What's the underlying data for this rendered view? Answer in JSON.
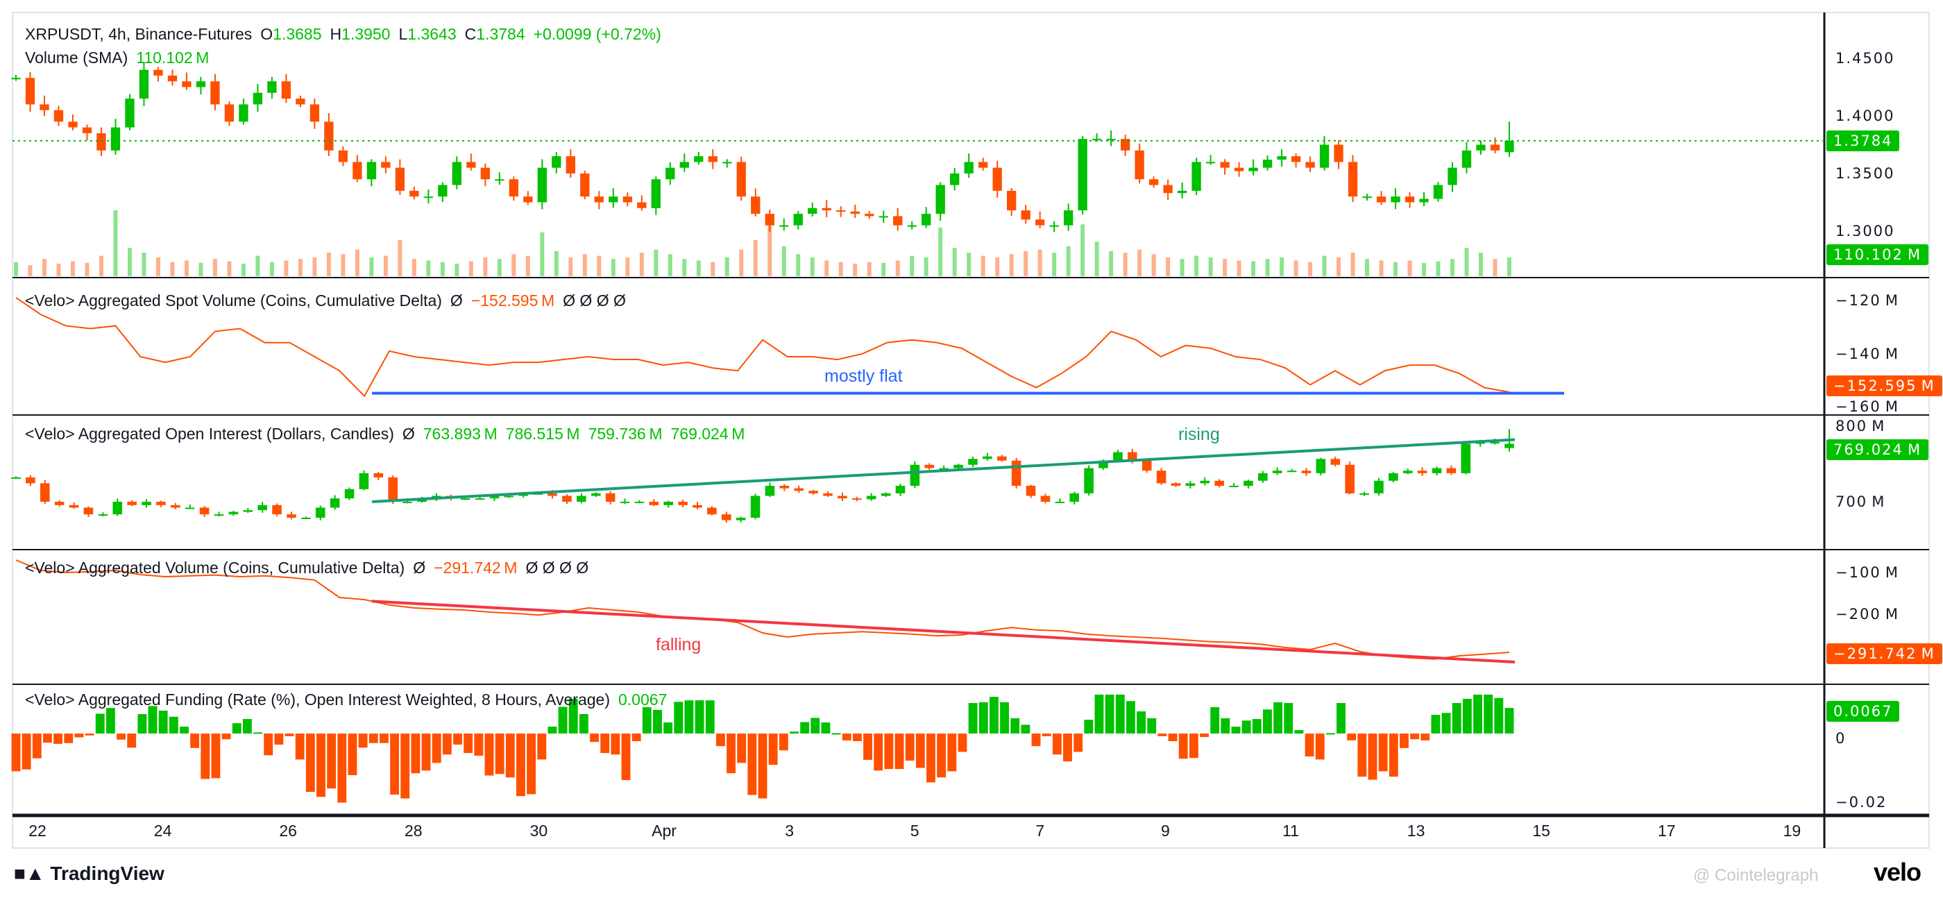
{
  "header": {
    "symbol": "XRPUSDT, 4h, Binance-Futures",
    "o_label": "O",
    "o": "1.3685",
    "h_label": "H",
    "h": "1.3950",
    "l_label": "L",
    "l": "1.3643",
    "c_label": "C",
    "c": "1.3784",
    "change": "+0.0099 (+0.72%)",
    "volume_label": "Volume (SMA)",
    "volume_value": "110.102 M"
  },
  "panes": {
    "spot": {
      "title": "<Velo> Aggregated Spot Volume (Coins, Cumulative Delta)",
      "pre": "Ø",
      "value": "−152.595 M",
      "post": "Ø  Ø  Ø  Ø"
    },
    "oi": {
      "title": "<Velo> Aggregated Open Interest (Dollars, Candles)",
      "pre": "Ø",
      "o": "763.893 M",
      "h": "786.515 M",
      "l": "759.736 M",
      "c": "769.024 M"
    },
    "vol": {
      "title": "<Velo> Aggregated Volume (Coins, Cumulative Delta)",
      "pre": "Ø",
      "value": "−291.742 M",
      "post": "Ø  Ø  Ø  Ø"
    },
    "funding": {
      "title": "<Velo> Aggregated Funding (Rate (%), Open Interest Weighted, 8 Hours, Average)",
      "value": "0.0067"
    }
  },
  "axes": {
    "price_ticks": [
      "1.4500",
      "1.4000",
      "1.3500",
      "1.3000"
    ],
    "price_tag": "1.3784",
    "volume_tag": "110.102 M",
    "spot_ticks": [
      "−120 M",
      "−140 M",
      "−160 M"
    ],
    "spot_tag": "−152.595 M",
    "oi_ticks": [
      "800 M",
      "700 M"
    ],
    "oi_tag": "769.024 M",
    "vol_ticks": [
      "−100 M",
      "−200 M"
    ],
    "vol_tag": "−291.742 M",
    "funding_ticks": [
      "0",
      "−0.02"
    ],
    "funding_tag": "0.0067",
    "date_ticks": [
      "22",
      "24",
      "26",
      "28",
      "30",
      "Apr",
      "3",
      "5",
      "7",
      "9",
      "11",
      "13",
      "15",
      "17",
      "19"
    ]
  },
  "annotations": {
    "spot": "mostly flat",
    "oi": "rising",
    "vol": "falling"
  },
  "footer": {
    "tradingview": "TradingView",
    "velo": "velo",
    "watermark": "@ Cointelegraph"
  },
  "colors": {
    "up": "#00c000",
    "down": "#ff5000",
    "flat_line": "#2962ff",
    "rising_line": "#1a9c78",
    "falling_line": "#f23645"
  },
  "chart_data": [
    {
      "type": "candlestick",
      "title": "XRPUSDT, 4h, Binance-Futures",
      "x_range": [
        "Mar 21",
        "Apr 14"
      ],
      "ylim": [
        1.28,
        1.48
      ],
      "close": [
        1.433,
        1.41,
        1.405,
        1.395,
        1.39,
        1.385,
        1.37,
        1.39,
        1.415,
        1.44,
        1.435,
        1.43,
        1.425,
        1.43,
        1.41,
        1.395,
        1.41,
        1.42,
        1.43,
        1.415,
        1.41,
        1.395,
        1.37,
        1.36,
        1.345,
        1.36,
        1.355,
        1.335,
        1.33,
        1.33,
        1.34,
        1.36,
        1.355,
        1.345,
        1.345,
        1.33,
        1.325,
        1.355,
        1.365,
        1.35,
        1.33,
        1.325,
        1.33,
        1.325,
        1.32,
        1.345,
        1.355,
        1.36,
        1.365,
        1.36,
        1.36,
        1.33,
        1.315,
        1.305,
        1.305,
        1.315,
        1.32,
        1.318,
        1.317,
        1.315,
        1.313,
        1.313,
        1.305,
        1.305,
        1.315,
        1.34,
        1.35,
        1.36,
        1.355,
        1.335,
        1.318,
        1.31,
        1.305,
        1.305,
        1.318,
        1.38,
        1.38,
        1.38,
        1.37,
        1.345,
        1.34,
        1.333,
        1.335,
        1.36,
        1.36,
        1.355,
        1.352,
        1.355,
        1.362,
        1.365,
        1.36,
        1.355,
        1.375,
        1.36,
        1.33,
        1.33,
        1.325,
        1.33,
        1.325,
        1.328,
        1.34,
        1.355,
        1.37,
        1.375,
        1.37,
        1.3784
      ],
      "last_candle": {
        "open": 1.3685,
        "high": 1.395,
        "low": 1.3643,
        "close": 1.3784
      },
      "volume_sma": 110.102,
      "volume_M": [
        90,
        70,
        110,
        80,
        95,
        85,
        130,
        420,
        180,
        150,
        120,
        90,
        100,
        85,
        110,
        95,
        80,
        130,
        90,
        100,
        110,
        120,
        150,
        140,
        170,
        120,
        130,
        230,
        110,
        100,
        90,
        80,
        95,
        120,
        110,
        140,
        130,
        280,
        160,
        120,
        140,
        130,
        110,
        120,
        150,
        170,
        140,
        110,
        100,
        90,
        120,
        170,
        230,
        350,
        190,
        140,
        120,
        100,
        90,
        80,
        90,
        85,
        100,
        130,
        120,
        310,
        180,
        150,
        130,
        120,
        140,
        160,
        170,
        150,
        190,
        330,
        220,
        160,
        150,
        170,
        140,
        120,
        110,
        130,
        120,
        110,
        100,
        95,
        110,
        120,
        100,
        90,
        130,
        120,
        150,
        110,
        100,
        90,
        100,
        85,
        95,
        110,
        180,
        150,
        110,
        120
      ]
    },
    {
      "type": "line",
      "title": "<Velo> Aggregated Spot Volume (Coins, Cumulative Delta)",
      "unit": "M",
      "last": -152.595,
      "values": [
        -119,
        -125,
        -129,
        -130,
        -129,
        -140,
        -142,
        -140,
        -131,
        -130,
        -135,
        -135,
        -140,
        -145,
        -154,
        -138,
        -140,
        -141,
        -142,
        -143,
        -142,
        -142,
        -141,
        -140,
        -141,
        -141,
        -143,
        -142,
        -144,
        -145,
        -134,
        -140,
        -140,
        -141,
        -139,
        -135,
        -134,
        -135,
        -137,
        -142,
        -147,
        -151,
        -146,
        -140,
        -131,
        -134,
        -140,
        -136,
        -137,
        -140,
        -141,
        -144,
        -150,
        -145,
        -150,
        -145,
        -143,
        -143,
        -146,
        -151,
        -152.595
      ]
    },
    {
      "type": "candlestick",
      "title": "<Velo> Aggregated Open Interest (Dollars, Candles)",
      "unit": "M",
      "close": [
        729,
        722,
        700,
        696,
        693,
        685,
        685,
        700,
        696,
        700,
        696,
        693,
        693,
        685,
        685,
        688,
        690,
        696,
        685,
        681,
        681,
        693,
        704,
        715,
        734,
        729,
        700,
        700,
        704,
        707,
        704,
        704,
        704,
        707,
        707,
        710,
        710,
        707,
        700,
        707,
        710,
        700,
        700,
        700,
        696,
        700,
        696,
        693,
        685,
        678,
        681,
        707,
        719,
        716,
        713,
        710,
        707,
        704,
        703,
        707,
        710,
        719,
        744,
        740,
        740,
        744,
        751,
        754,
        749,
        719,
        707,
        700,
        700,
        710,
        740,
        749,
        759,
        749,
        737,
        722,
        719,
        722,
        725,
        719,
        719,
        725,
        734,
        737,
        737,
        734,
        751,
        744,
        710,
        710,
        725,
        734,
        737,
        734,
        740,
        734,
        769,
        771,
        771,
        769.024
      ],
      "last_candle": {
        "open": 763.893,
        "high": 786.515,
        "low": 759.736,
        "close": 769.024
      }
    },
    {
      "type": "line",
      "title": "<Velo> Aggregated Volume (Coins, Cumulative Delta)",
      "unit": "M",
      "last": -291.742,
      "values": [
        -70,
        -95,
        -100,
        -98,
        -95,
        -105,
        -110,
        -108,
        -106,
        -110,
        -108,
        -112,
        -118,
        -160,
        -165,
        -178,
        -185,
        -188,
        -190,
        -195,
        -198,
        -202,
        -195,
        -185,
        -190,
        -195,
        -205,
        -210,
        -212,
        -220,
        -245,
        -255,
        -248,
        -245,
        -242,
        -245,
        -248,
        -252,
        -250,
        -240,
        -232,
        -238,
        -240,
        -248,
        -252,
        -255,
        -258,
        -262,
        -266,
        -268,
        -272,
        -280,
        -285,
        -270,
        -290,
        -300,
        -305,
        -308,
        -300,
        -296,
        -291.742
      ]
    },
    {
      "type": "bar",
      "title": "<Velo> Aggregated Funding (Rate (%), Open Interest Weighted, 8 Hours, Average)",
      "last": 0.0067,
      "values": [
        -0.0099,
        -0.0094,
        -0.0065,
        -0.0024,
        -0.0027,
        -0.0025,
        -0.001,
        -0.0005,
        0.0052,
        0.0067,
        -0.0016,
        -0.0037,
        0.0051,
        0.0072,
        0.006,
        0.0044,
        0.0018,
        -0.0038,
        -0.0119,
        -0.0117,
        -0.0015,
        0.0027,
        0.0038,
        0.0003,
        -0.0057,
        -0.0029,
        -0.0007,
        -0.0068,
        -0.0153,
        -0.0166,
        -0.0144,
        -0.0181,
        -0.0109,
        -0.0037,
        -0.0025,
        -0.0025,
        -0.016,
        -0.017,
        -0.0104,
        -0.0097,
        -0.0077,
        -0.0055,
        -0.0029,
        -0.0051,
        -0.0058,
        -0.011,
        -0.0106,
        -0.0115,
        -0.0164,
        -0.0159,
        -0.0068,
        0.0018,
        0.007,
        0.0091,
        0.0051,
        -0.0022,
        -0.0051,
        -0.0055,
        -0.0122,
        -0.002,
        0.0069,
        0.0062,
        0.0029,
        0.0083,
        0.0087,
        0.0087,
        0.0087,
        -0.0033,
        -0.0104,
        -0.0077,
        -0.0161,
        -0.017,
        -0.0082,
        -0.0044,
        0.0005,
        0.003,
        0.0041,
        0.0029,
        0.0001,
        -0.0018,
        -0.002,
        -0.0069,
        -0.0097,
        -0.0093,
        -0.0093,
        -0.0071,
        -0.009,
        -0.0128,
        -0.0115,
        -0.0099,
        -0.0048,
        0.008,
        0.0082,
        0.0096,
        0.0082,
        0.004,
        0.0023,
        -0.0033,
        -0.0007,
        -0.0055,
        -0.0073,
        -0.0048,
        0.0036,
        0.0102,
        0.0102,
        0.0102,
        0.0085,
        0.0058,
        0.004,
        -0.0007,
        -0.002,
        -0.0066,
        -0.0064,
        -0.0009,
        0.0069,
        0.004,
        0.0018,
        0.0034,
        0.0038,
        0.0063,
        0.0082,
        0.008,
        0.0009,
        -0.006,
        -0.0068,
        0.0001,
        0.008,
        -0.0018,
        -0.0113,
        -0.0121,
        -0.0099,
        -0.0113,
        -0.0038,
        -0.0015,
        -0.0018,
        0.0049,
        0.0054,
        0.008,
        0.0091,
        0.0102,
        0.0102,
        0.0093,
        0.0067
      ]
    }
  ],
  "trendlines": {
    "spot_flat": {
      "from": -153,
      "to": -153
    },
    "oi_rising": {
      "from": 700,
      "to": 774
    },
    "vol_falling": {
      "from": -169,
      "to": -315
    }
  }
}
